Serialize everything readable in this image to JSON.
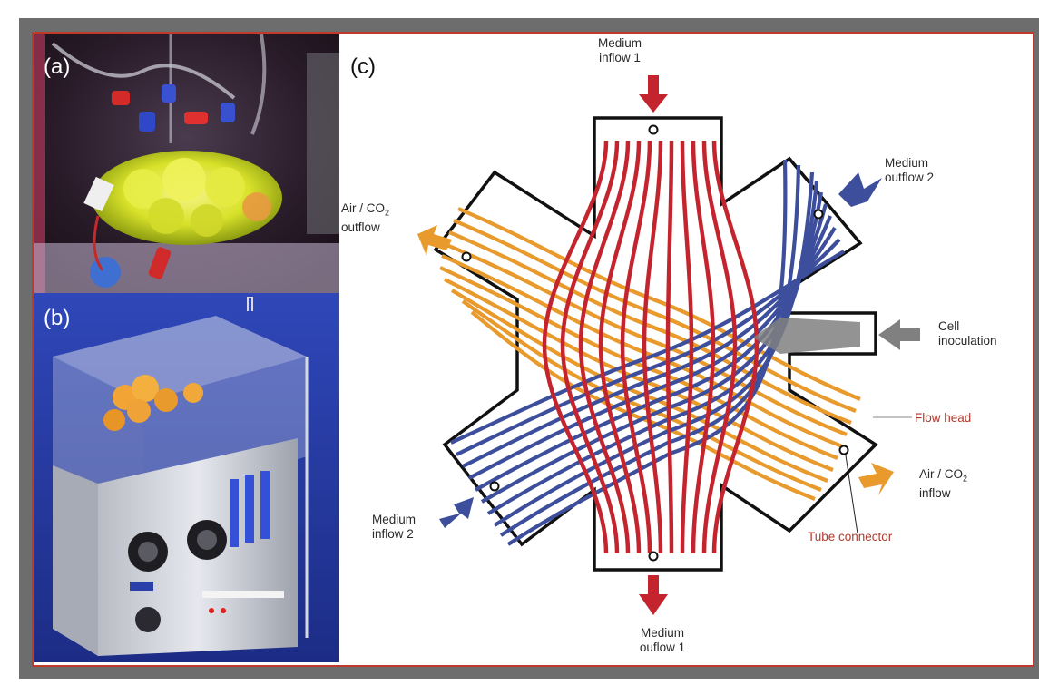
{
  "panels": {
    "a": "(a)",
    "b": "(b)",
    "c": "(c)"
  },
  "labels": {
    "medium_inflow_1": [
      "Medium",
      "inflow 1"
    ],
    "medium_outflow_2": [
      "Medium",
      "outflow 2"
    ],
    "air_co2_outflow": [
      "Air / CO",
      "2",
      "outflow"
    ],
    "cell_inoculation": [
      "Cell",
      "inoculation"
    ],
    "flow_head": "Flow head",
    "air_co2_inflow": [
      "Air / CO",
      "2",
      "inflow"
    ],
    "tube_connector": "Tube connector",
    "medium_inflow_2": [
      "Medium",
      "inflow 2"
    ],
    "medium_outflow_1": [
      "Medium",
      "ouflow 1"
    ]
  },
  "colors": {
    "medium_1": "#c4242d",
    "medium_2": "#3d4f9c",
    "air_co2": "#e89a2c",
    "cell_inoculation": "#808080",
    "frame": "#6d6d6d",
    "border": "#c0392b"
  }
}
